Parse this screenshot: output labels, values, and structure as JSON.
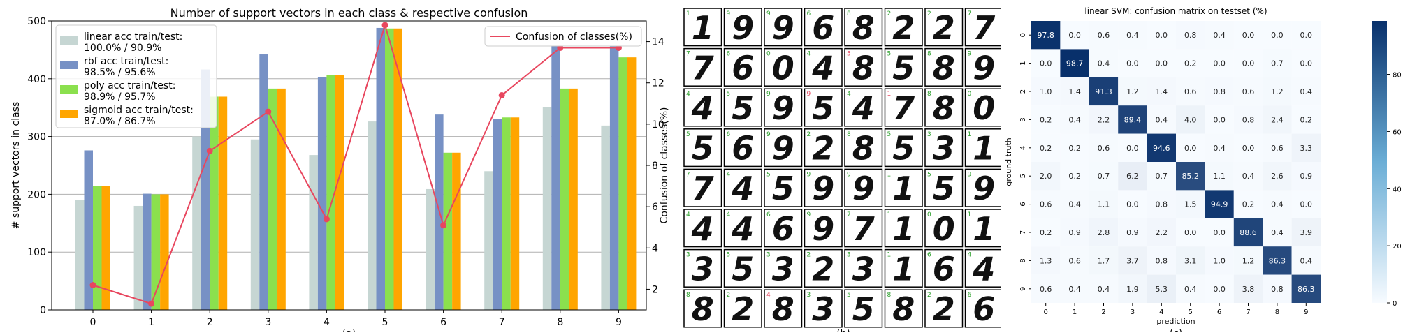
{
  "chart_data": [
    {
      "type": "bar",
      "title": "Number of support vectors in each class & respective confusion",
      "xlabel": "",
      "ylabel": "# support vectors in class",
      "y2label": "Confusion of classes(%)",
      "categories": [
        "0",
        "1",
        "2",
        "3",
        "4",
        "5",
        "6",
        "7",
        "8",
        "9"
      ],
      "ylim": [
        0,
        500
      ],
      "y2lim": [
        1,
        15
      ],
      "yticks": [
        0,
        100,
        200,
        300,
        400,
        500
      ],
      "y2ticks": [
        2,
        4,
        6,
        8,
        10,
        12,
        14
      ],
      "grid": true,
      "legend": "top-left",
      "series": [
        {
          "name": "linear acc train/test:\n100.0% / 90.9%",
          "color": "#c6d6d3",
          "values": [
            190,
            180,
            300,
            295,
            268,
            326,
            209,
            240,
            351,
            319
          ]
        },
        {
          "name": "rbf acc train/test:\n98.5% / 95.6%",
          "color": "#7791c5",
          "values": [
            276,
            201,
            416,
            442,
            403,
            488,
            338,
            330,
            475,
            475
          ]
        },
        {
          "name": "poly acc train/test:\n98.9% / 95.7%",
          "color": "#8be04e",
          "values": [
            214,
            200,
            369,
            383,
            407,
            487,
            272,
            333,
            383,
            437
          ]
        },
        {
          "name": "sigmoid acc train/test:\n87.0% / 86.7%",
          "color": "#ffa500",
          "values": [
            214,
            200,
            369,
            383,
            407,
            487,
            272,
            333,
            383,
            437
          ]
        }
      ],
      "line_series": {
        "name": "Confusion of classes(%)",
        "color": "#e8475f",
        "values": [
          2.2,
          1.3,
          8.7,
          10.6,
          5.4,
          14.8,
          5.1,
          11.4,
          13.7,
          13.7
        ]
      },
      "caption": "(a)"
    },
    {
      "type": "table",
      "title": "",
      "caption": "(b)",
      "rows": [
        {
          "labels": [
            "1",
            "9",
            "9",
            "6",
            "8",
            "2",
            "2",
            "7"
          ],
          "digits": [
            "1",
            "9",
            "9",
            "6",
            "8",
            "2",
            "2",
            "7"
          ]
        },
        {
          "labels": [
            "7",
            "6",
            "0",
            "4",
            "5",
            "5",
            "8",
            "9"
          ],
          "digits": [
            "7",
            "6",
            "0",
            "4",
            "8",
            "5",
            "8",
            "9"
          ]
        },
        {
          "labels": [
            "4",
            "5",
            "9",
            "9",
            "4",
            "1",
            "8",
            "0"
          ],
          "digits": [
            "4",
            "5",
            "9",
            "5",
            "4",
            "7",
            "8",
            "0"
          ]
        },
        {
          "labels": [
            "5",
            "6",
            "9",
            "2",
            "8",
            "5",
            "3",
            "1"
          ],
          "digits": [
            "5",
            "6",
            "9",
            "2",
            "8",
            "5",
            "3",
            "1"
          ]
        },
        {
          "labels": [
            "7",
            "4",
            "5",
            "9",
            "9",
            "1",
            "5",
            "9"
          ],
          "digits": [
            "7",
            "4",
            "5",
            "9",
            "9",
            "1",
            "5",
            "9"
          ]
        },
        {
          "labels": [
            "4",
            "4",
            "6",
            "9",
            "7",
            "1",
            "0",
            "1"
          ],
          "digits": [
            "4",
            "4",
            "6",
            "9",
            "7",
            "1",
            "0",
            "1"
          ]
        },
        {
          "labels": [
            "3",
            "5",
            "3",
            "2",
            "3",
            "1",
            "6",
            "4"
          ],
          "digits": [
            "3",
            "5",
            "3",
            "2",
            "3",
            "1",
            "6",
            "4"
          ]
        },
        {
          "labels": [
            "8",
            "2",
            "4",
            "3",
            "5",
            "8",
            "2",
            "6"
          ],
          "digits": [
            "8",
            "2",
            "8",
            "3",
            "5",
            "8",
            "2",
            "6"
          ]
        }
      ],
      "highlight_color": "#e8475f",
      "label_color": "#2ca02c"
    },
    {
      "type": "heatmap",
      "title": "linear SVM: confusion matrix on testset (%)",
      "xlabel": "prediction",
      "ylabel": "ground truth",
      "x": [
        "0",
        "1",
        "2",
        "3",
        "4",
        "5",
        "6",
        "7",
        "8",
        "9"
      ],
      "y": [
        "0",
        "1",
        "2",
        "3",
        "4",
        "5",
        "6",
        "7",
        "8",
        "9"
      ],
      "values": [
        [
          97.8,
          0.0,
          0.6,
          0.4,
          0.0,
          0.8,
          0.4,
          0.0,
          0.0,
          0.0
        ],
        [
          0.0,
          98.7,
          0.4,
          0.0,
          0.0,
          0.2,
          0.0,
          0.0,
          0.7,
          0.0
        ],
        [
          1.0,
          1.4,
          91.3,
          1.2,
          1.4,
          0.6,
          0.8,
          0.6,
          1.2,
          0.4
        ],
        [
          0.2,
          0.4,
          2.2,
          89.4,
          0.4,
          4.0,
          0.0,
          0.8,
          2.4,
          0.2
        ],
        [
          0.2,
          0.2,
          0.6,
          0.0,
          94.6,
          0.0,
          0.4,
          0.0,
          0.6,
          3.3
        ],
        [
          2.0,
          0.2,
          0.7,
          6.2,
          0.7,
          85.2,
          1.1,
          0.4,
          2.6,
          0.9
        ],
        [
          0.6,
          0.4,
          1.1,
          0.0,
          0.8,
          1.5,
          94.9,
          0.2,
          0.4,
          0.0
        ],
        [
          0.2,
          0.9,
          2.8,
          0.9,
          2.2,
          0.0,
          0.0,
          88.6,
          0.4,
          3.9
        ],
        [
          1.3,
          0.6,
          1.7,
          3.7,
          0.8,
          3.1,
          1.0,
          1.2,
          86.3,
          0.4
        ],
        [
          0.6,
          0.4,
          0.4,
          1.9,
          5.3,
          0.4,
          0.0,
          3.8,
          0.8,
          86.3
        ]
      ],
      "colorbar_ticks": [
        0,
        20,
        40,
        60,
        80
      ],
      "colormap": [
        "#f7fbff",
        "#08306b"
      ],
      "caption": "(c)"
    }
  ]
}
